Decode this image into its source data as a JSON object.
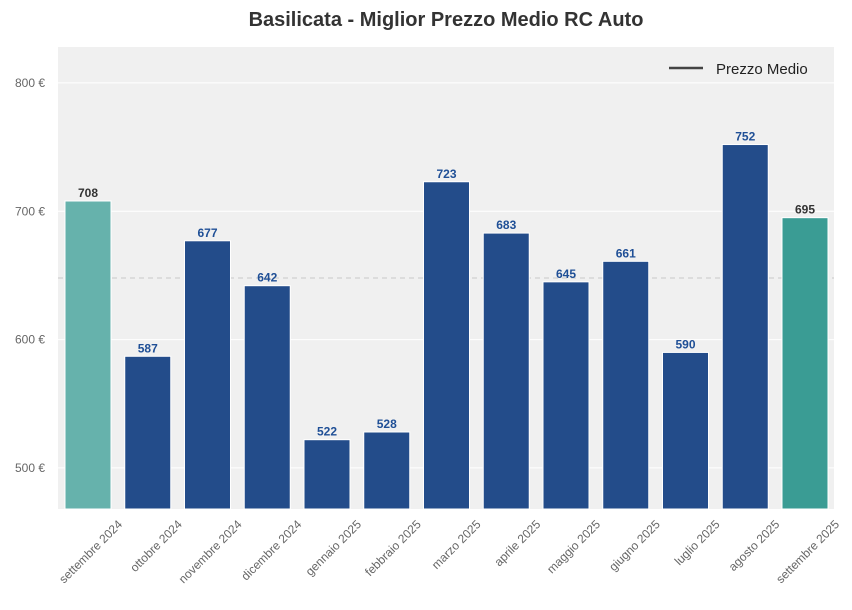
{
  "chart_data": {
    "type": "bar",
    "title": "Basilicata - Miglior Prezzo Medio RC Auto",
    "xlabel": "",
    "ylabel": "",
    "categories": [
      "settembre 2024",
      "ottobre 2024",
      "novembre 2024",
      "dicembre 2024",
      "gennaio 2025",
      "febbraio 2025",
      "marzo 2025",
      "aprile 2025",
      "maggio 2025",
      "giugno 2025",
      "luglio 2025",
      "agosto 2025",
      "settembre 2025"
    ],
    "values": [
      708,
      587,
      677,
      642,
      522,
      528,
      723,
      683,
      645,
      661,
      590,
      752,
      695
    ],
    "data_labels": [
      "708",
      "587",
      "677",
      "642",
      "522",
      "528",
      "723",
      "683",
      "645",
      "661",
      "590",
      "752",
      "695"
    ],
    "bar_colors": [
      "#66b2ac",
      "#234c8a",
      "#234c8a",
      "#234c8a",
      "#234c8a",
      "#234c8a",
      "#234c8a",
      "#234c8a",
      "#234c8a",
      "#234c8a",
      "#234c8a",
      "#234c8a",
      "#3a9c94"
    ],
    "label_colors": [
      "#333333",
      "#1f4f96",
      "#1f4f96",
      "#1f4f96",
      "#1f4f96",
      "#1f4f96",
      "#1f4f96",
      "#1f4f96",
      "#1f4f96",
      "#1f4f96",
      "#1f4f96",
      "#1f4f96",
      "#333333"
    ],
    "ylim": [
      468,
      828
    ],
    "yticks": [
      500,
      600,
      700,
      800
    ],
    "ytick_labels": [
      "500 €",
      "600 €",
      "700 €",
      "800 €"
    ],
    "average_line": 648,
    "legend": {
      "label": "Prezzo Medio",
      "position": "top-right"
    },
    "grid": true,
    "colors": {
      "background": "#f0f0f0",
      "grid": "#ffffff",
      "average_line": "#c8c8c8",
      "legend_line": "#444444"
    }
  }
}
